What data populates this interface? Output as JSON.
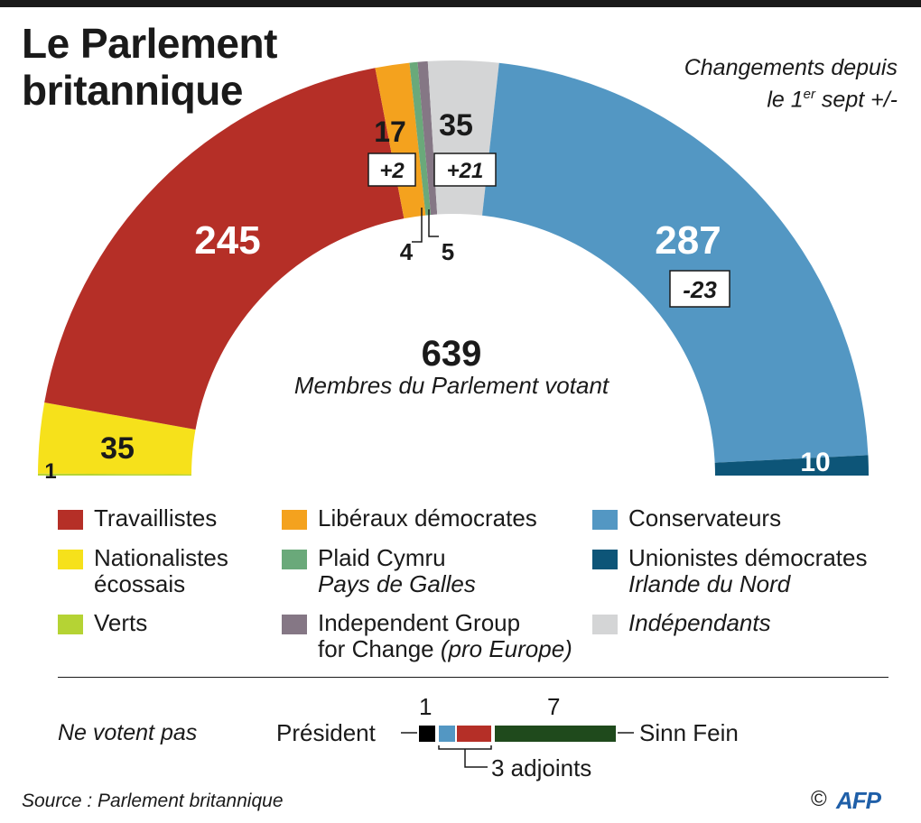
{
  "title": {
    "line1": "Le Parlement",
    "line2": "britannique"
  },
  "changes_note": {
    "line1": "Changements depuis",
    "line2_prefix": "le 1",
    "line2_sup": "er",
    "line2_suffix": " sept +/-"
  },
  "center": {
    "total": "639",
    "caption": "Membres du Parlement votant"
  },
  "chart_data": {
    "type": "pie",
    "subtype": "half-donut parliament chart",
    "title": "Le Parlement britannique",
    "total_voting": 639,
    "segments": [
      {
        "party": "Verts",
        "seats": 1,
        "color": "#b5d334",
        "label": "1",
        "change": null
      },
      {
        "party": "Nationalistes écossais",
        "seats": 35,
        "color": "#f6e11b",
        "label": "35",
        "change": null
      },
      {
        "party": "Travaillistes",
        "seats": 245,
        "color": "#b52f27",
        "label": "245",
        "change": null
      },
      {
        "party": "Libéraux démocrates",
        "seats": 17,
        "color": "#f4a21e",
        "label": "17",
        "change": "+2"
      },
      {
        "party": "Plaid Cymru",
        "seats": 4,
        "color": "#6aa97a",
        "label": "4",
        "change": null
      },
      {
        "party": "Independent Group for Change",
        "seats": 5,
        "color": "#857785",
        "label": "5",
        "change": null
      },
      {
        "party": "Indépendants",
        "seats": 35,
        "color": "#d4d5d6",
        "label": "35",
        "change": "+21"
      },
      {
        "party": "Conservateurs",
        "seats": 287,
        "color": "#5397c3",
        "label": "287",
        "change": "-23"
      },
      {
        "party": "Unionistes démocrates",
        "seats": 10,
        "color": "#0d5578",
        "label": "10",
        "change": null
      }
    ]
  },
  "legend": {
    "items": [
      {
        "line1": "Travaillistes",
        "line2": "",
        "color": "#b52f27"
      },
      {
        "line1": "Nationalistes",
        "line2": "écossais",
        "color": "#f6e11b"
      },
      {
        "line1": "Verts",
        "line2": "",
        "color": "#b5d334"
      },
      {
        "line1": "Libéraux démocrates",
        "line2": "",
        "color": "#f4a21e"
      },
      {
        "line1": "Plaid Cymru",
        "line2": "Pays de Galles",
        "color": "#6aa97a"
      },
      {
        "line1": "Independent Group",
        "line2": "for Change",
        "line2_italic": "(pro Europe)",
        "color": "#857785"
      },
      {
        "line1": "Conservateurs",
        "line2": "",
        "color": "#5397c3"
      },
      {
        "line1": "Unionistes démocrates",
        "line2": "Irlande du Nord",
        "color": "#0d5578"
      },
      {
        "line1": "Indépendants",
        "line2": "",
        "color": "#d4d5d6"
      }
    ]
  },
  "non_voting": {
    "title": "Ne votent pas",
    "president_label": "Président",
    "president_count": "1",
    "deputies_label": "3 adjoints",
    "sinn_fein_label": "Sinn Fein",
    "sinn_fein_count": "7",
    "colors": {
      "president": "#000000",
      "deputy1": "#5397c3",
      "deputy2": "#b52f27",
      "sinn_fein": "#1f4a1c"
    }
  },
  "source": "Source : Parlement britannique",
  "copyright": "©",
  "logo_text": "AFP"
}
